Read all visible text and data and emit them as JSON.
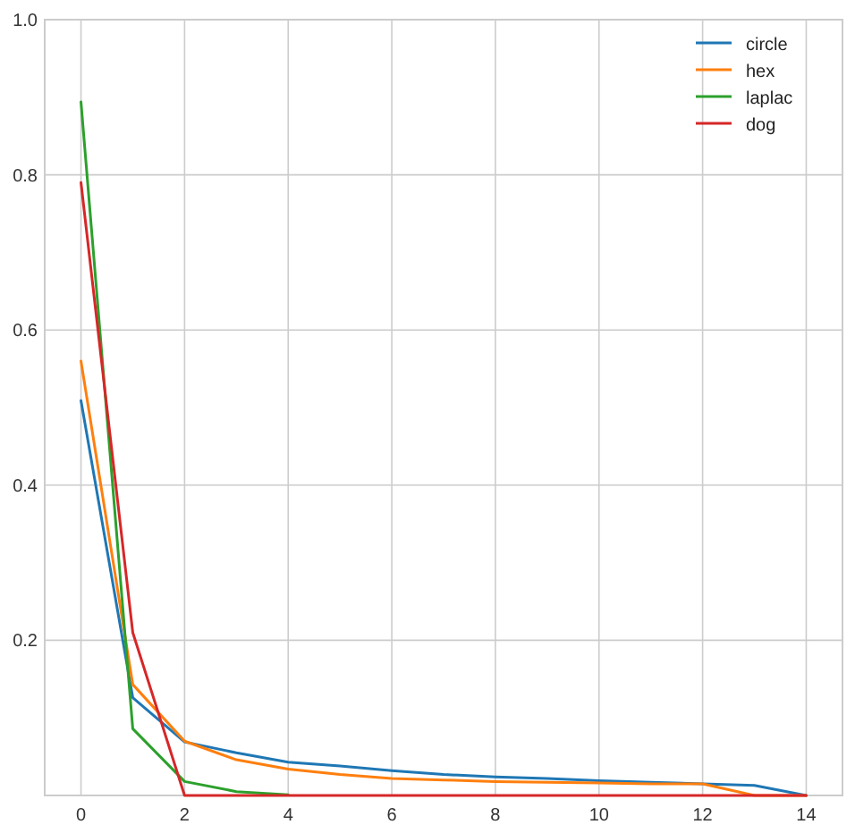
{
  "chart_data": {
    "type": "line",
    "x": [
      0,
      1,
      2,
      3,
      4,
      5,
      6,
      7,
      8,
      9,
      10,
      11,
      12,
      13,
      14
    ],
    "series": [
      {
        "name": "circle",
        "color": "#1f77b4",
        "values": [
          0.509,
          0.126,
          0.069,
          0.055,
          0.043,
          0.038,
          0.032,
          0.027,
          0.024,
          0.022,
          0.019,
          0.017,
          0.015,
          0.013,
          0
        ]
      },
      {
        "name": "hex",
        "color": "#ff7f0e",
        "values": [
          0.56,
          0.143,
          0.07,
          0.046,
          0.034,
          0.027,
          0.022,
          0.02,
          0.018,
          0.017,
          0.016,
          0.015,
          0.015,
          0,
          0
        ]
      },
      {
        "name": "laplac",
        "color": "#2ca02c",
        "values": [
          0.894,
          0.086,
          0.018,
          0.005,
          0.001,
          null,
          null,
          null,
          null,
          null,
          null,
          null,
          null,
          null,
          null
        ]
      },
      {
        "name": "dog",
        "color": "#d62728",
        "values": [
          0.79,
          0.21,
          0,
          0,
          0,
          0,
          0,
          0,
          0,
          0,
          0,
          0,
          0,
          0,
          0
        ]
      }
    ],
    "xlim": [
      -0.7,
      14.7
    ],
    "xticks": [
      0,
      2,
      4,
      6,
      8,
      10,
      12,
      14
    ],
    "ylim": [
      0,
      1
    ],
    "yticks": [
      0.2,
      0.4,
      0.6,
      0.8,
      {
        "value": 1,
        "label": "1.0"
      }
    ],
    "grid": true,
    "legend": "top right"
  }
}
